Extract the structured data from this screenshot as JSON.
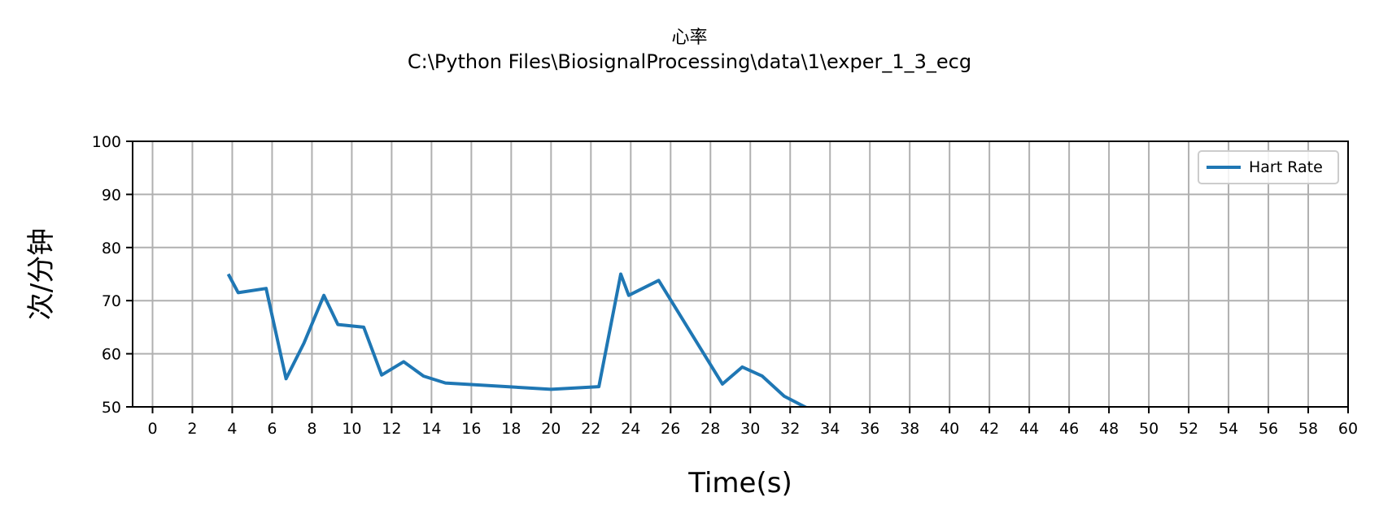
{
  "chart_data": {
    "type": "line",
    "title": "心率",
    "subtitle": "C:\\Python Files\\BiosignalProcessing\\data\\1\\exper_1_3_ecg",
    "xlabel": "Time(s)",
    "ylabel": "次/分钟",
    "xlim": [
      -1,
      60
    ],
    "ylim": [
      50,
      100
    ],
    "xticks": [
      0,
      2,
      4,
      6,
      8,
      10,
      12,
      14,
      16,
      18,
      20,
      22,
      24,
      26,
      28,
      30,
      32,
      34,
      36,
      38,
      40,
      42,
      44,
      46,
      48,
      50,
      52,
      54,
      56,
      58,
      60
    ],
    "yticks": [
      50,
      60,
      70,
      80,
      90,
      100
    ],
    "grid": true,
    "legend_position": "top-right",
    "series": [
      {
        "name": "Hart Rate",
        "color": "#1f77b4",
        "x": [
          3.8,
          4.3,
          5.7,
          6.7,
          7.6,
          8.6,
          9.3,
          10.6,
          11.5,
          12.6,
          13.6,
          14.7,
          20.0,
          22.4,
          23.5,
          23.9,
          25.4,
          28.6,
          29.6,
          30.6,
          31.7,
          33.0
        ],
        "y": [
          75.0,
          71.5,
          72.3,
          55.3,
          62.0,
          71.0,
          65.5,
          65.0,
          56.0,
          58.5,
          55.8,
          54.5,
          53.3,
          53.8,
          75.0,
          71.0,
          73.8,
          54.3,
          57.5,
          55.8,
          52.0,
          49.5
        ]
      }
    ]
  }
}
